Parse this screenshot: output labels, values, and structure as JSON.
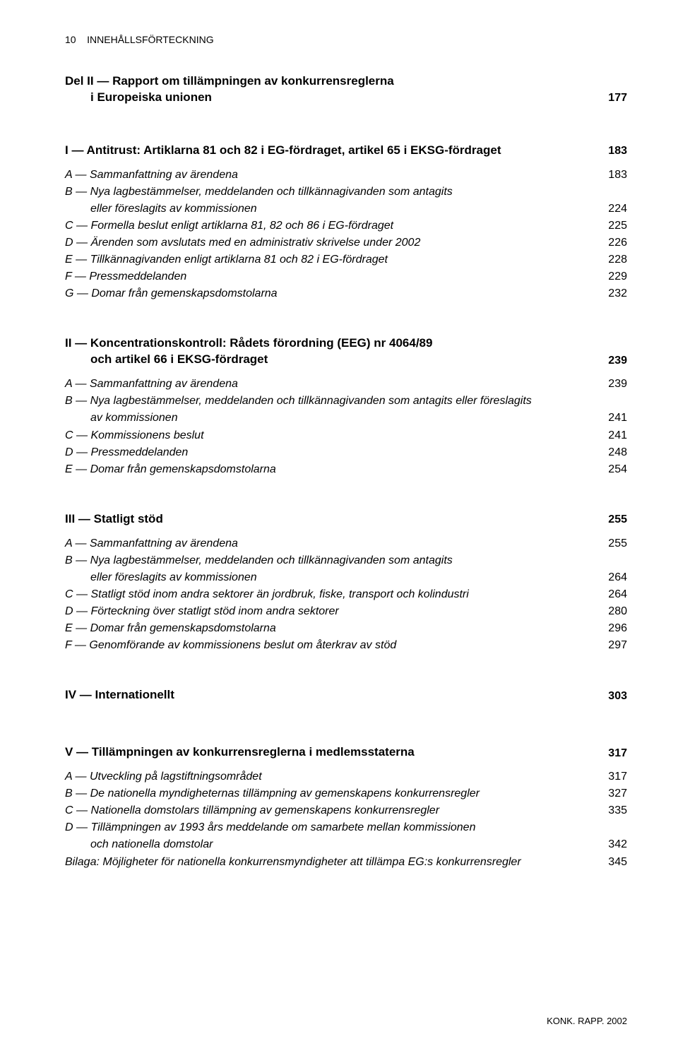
{
  "header": {
    "page_no": "10",
    "running_title": "INNEHÅLLSFÖRTECKNING"
  },
  "part_title": {
    "line1": "Del II — Rapport om tillämpningen av konkurrensreglerna",
    "line2_indent": "i Europeiska unionen",
    "page": "177"
  },
  "chapters": [
    {
      "heading": "I — Antitrust: Artiklarna 81 och 82 i EG-fördraget, artikel 65 i EKSG-fördraget",
      "page": "183",
      "entries": [
        {
          "text": "A — Sammanfattning av ärendena",
          "page": "183"
        },
        {
          "text": "B — Nya lagbestämmelser, meddelanden och tillkännagivanden som antagits",
          "cont": "eller föreslagits av kommissionen",
          "page": "224"
        },
        {
          "text": "C — Formella beslut enligt artiklarna 81, 82 och 86 i EG-fördraget",
          "page": "225"
        },
        {
          "text": "D — Ärenden som avslutats med en administrativ skrivelse under 2002",
          "page": "226"
        },
        {
          "text": "E — Tillkännagivanden enligt artiklarna 81 och 82 i EG-fördraget",
          "page": "228"
        },
        {
          "text": "F — Pressmeddelanden",
          "page": "229"
        },
        {
          "text": "G — Domar från gemenskapsdomstolarna",
          "page": "232"
        }
      ]
    },
    {
      "heading": "II — Koncentrationskontroll: Rådets förordning (EEG) nr 4064/89",
      "heading_cont": "och artikel 66 i EKSG-fördraget",
      "page": "239",
      "entries": [
        {
          "text": "A — Sammanfattning av ärendena",
          "page": "239"
        },
        {
          "text": "B — Nya lagbestämmelser, meddelanden och tillkännagivanden som antagits eller föreslagits",
          "cont": "av kommissionen",
          "page": "241"
        },
        {
          "text": "C — Kommissionens beslut",
          "page": "241"
        },
        {
          "text": "D — Pressmeddelanden",
          "page": "248"
        },
        {
          "text": "E — Domar från gemenskapsdomstolarna",
          "page": "254"
        }
      ]
    },
    {
      "heading": "III — Statligt stöd",
      "page": "255",
      "entries": [
        {
          "text": "A — Sammanfattning av ärendena",
          "page": "255"
        },
        {
          "text": "B — Nya lagbestämmelser, meddelanden och tillkännagivanden som antagits",
          "cont": "eller föreslagits av kommissionen",
          "page": "264"
        },
        {
          "text": "C — Statligt stöd inom andra sektorer än jordbruk, fiske, transport och kolindustri",
          "page": "264"
        },
        {
          "text": "D — Förteckning över statligt stöd inom andra sektorer",
          "page": "280"
        },
        {
          "text": "E — Domar från gemenskapsdomstolarna",
          "page": "296"
        },
        {
          "text": "F — Genomförande av kommissionens beslut om återkrav av stöd",
          "page": "297"
        }
      ]
    },
    {
      "heading": "IV — Internationellt",
      "page": "303",
      "entries": []
    },
    {
      "heading": "V — Tillämpningen av konkurrensreglerna i medlemsstaterna",
      "page": "317",
      "entries": [
        {
          "text": "A — Utveckling på lagstiftningsområdet",
          "page": "317"
        },
        {
          "text": "B — De nationella myndigheternas tillämpning av gemenskapens konkurrensregler",
          "page": "327"
        },
        {
          "text": "C — Nationella domstolars tillämpning av gemenskapens konkurrensregler",
          "page": "335"
        },
        {
          "text": "D — Tillämpningen av 1993 års meddelande om samarbete mellan kommissionen",
          "cont": "och nationella domstolar",
          "page": "342"
        },
        {
          "text": "Bilaga: Möjligheter för nationella konkurrensmyndigheter att tillämpa EG:s konkurrensregler",
          "page": "345"
        }
      ]
    }
  ],
  "footer": "KONK. RAPP. 2002"
}
